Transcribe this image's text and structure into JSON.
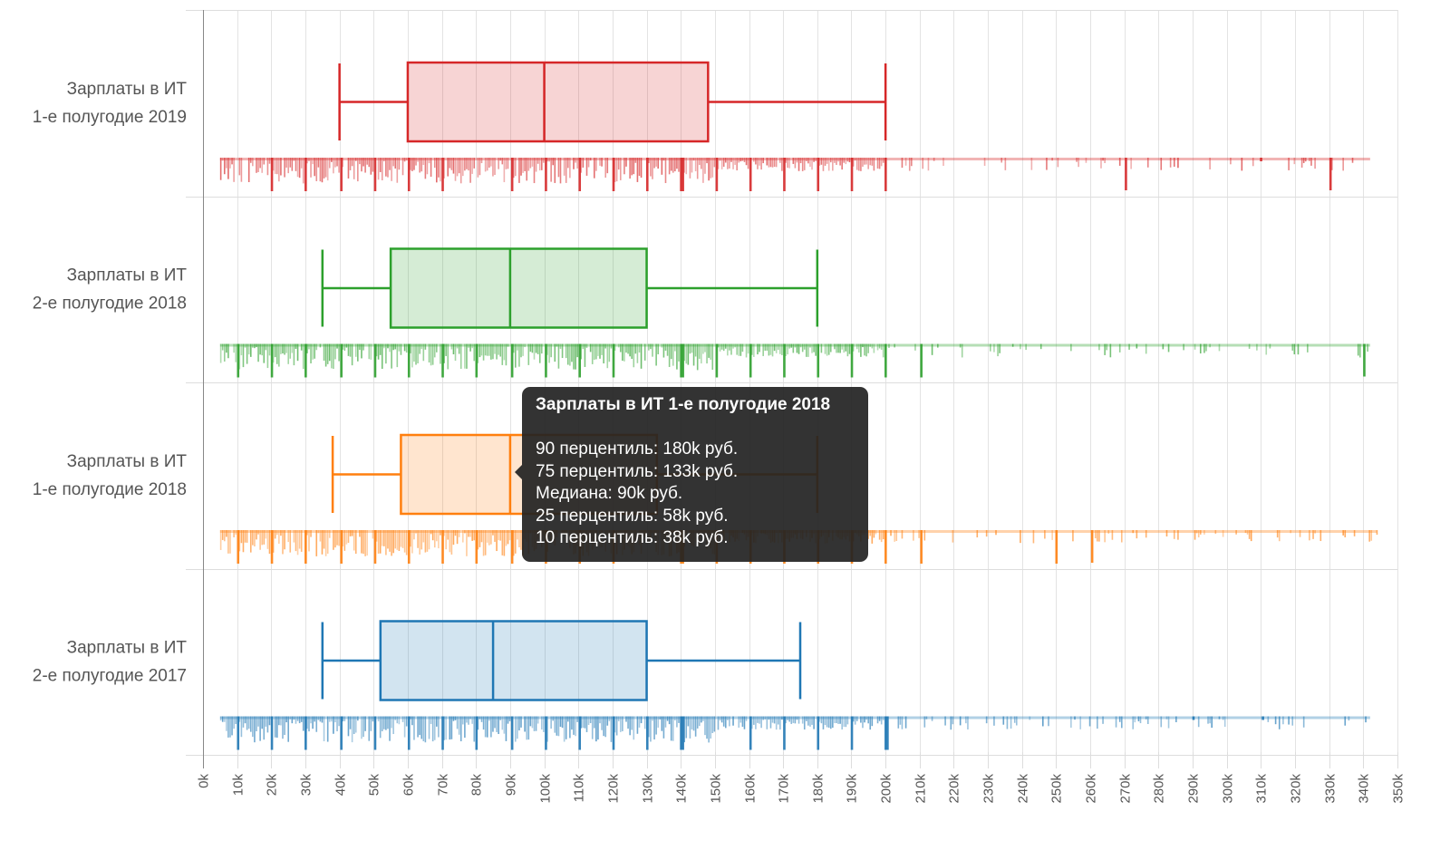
{
  "chart_data": {
    "type": "boxplot",
    "title": "",
    "xlabel": "",
    "ylabel": "",
    "xlim": [
      0,
      350
    ],
    "x_unit": "k руб.",
    "x_ticks": [
      "0k",
      "10k",
      "20k",
      "30k",
      "40k",
      "50k",
      "60k",
      "70k",
      "80k",
      "90k",
      "100k",
      "110k",
      "120k",
      "130k",
      "140k",
      "150k",
      "160k",
      "170k",
      "180k",
      "190k",
      "200k",
      "210k",
      "220k",
      "230k",
      "240k",
      "250k",
      "260k",
      "270k",
      "280k",
      "290k",
      "300k",
      "310k",
      "320k",
      "330k",
      "340k",
      "350k"
    ],
    "grid": "vertical",
    "legend": "none",
    "series": [
      {
        "name": "Зарплаты в ИТ 1-е полугодие 2019",
        "label_lines": [
          "Зарплаты в ИТ",
          "1-е полугодие 2019"
        ],
        "color": "#d62728",
        "p10": 40,
        "p25": 60,
        "median": 100,
        "p75": 148,
        "p90": 200,
        "rug_range": [
          5,
          342
        ]
      },
      {
        "name": "Зарплаты в ИТ 2-е полугодие 2018",
        "label_lines": [
          "Зарплаты в ИТ",
          "2-е полугодие 2018"
        ],
        "color": "#2ca02c",
        "p10": 35,
        "p25": 55,
        "median": 90,
        "p75": 130,
        "p90": 180,
        "rug_range": [
          5,
          342
        ]
      },
      {
        "name": "Зарплаты в ИТ 1-е полугодие 2018",
        "label_lines": [
          "Зарплаты в ИТ",
          "1-е полугодие 2018"
        ],
        "color": "#ff7f0e",
        "p10": 38,
        "p25": 58,
        "median": 90,
        "p75": 133,
        "p90": 180,
        "rug_range": [
          5,
          344
        ]
      },
      {
        "name": "Зарплаты в ИТ 2-е полугодие 2017",
        "label_lines": [
          "Зарплаты в ИТ",
          "2-е полугодие 2017"
        ],
        "color": "#1f77b4",
        "p10": 35,
        "p25": 52,
        "median": 85,
        "p75": 130,
        "p90": 175,
        "rug_range": [
          5,
          342
        ]
      }
    ],
    "annotations": []
  },
  "tooltip": {
    "visible_for_series": 2,
    "title": "Зарплаты в ИТ 1-е полугодие 2018",
    "lines": [
      "90 перцентиль: 180k руб.",
      "75 перцентиль: 133k руб.",
      "Медиана: 90k руб.",
      "25 перцентиль: 58k руб.",
      "10 перцентиль: 38k руб."
    ]
  }
}
